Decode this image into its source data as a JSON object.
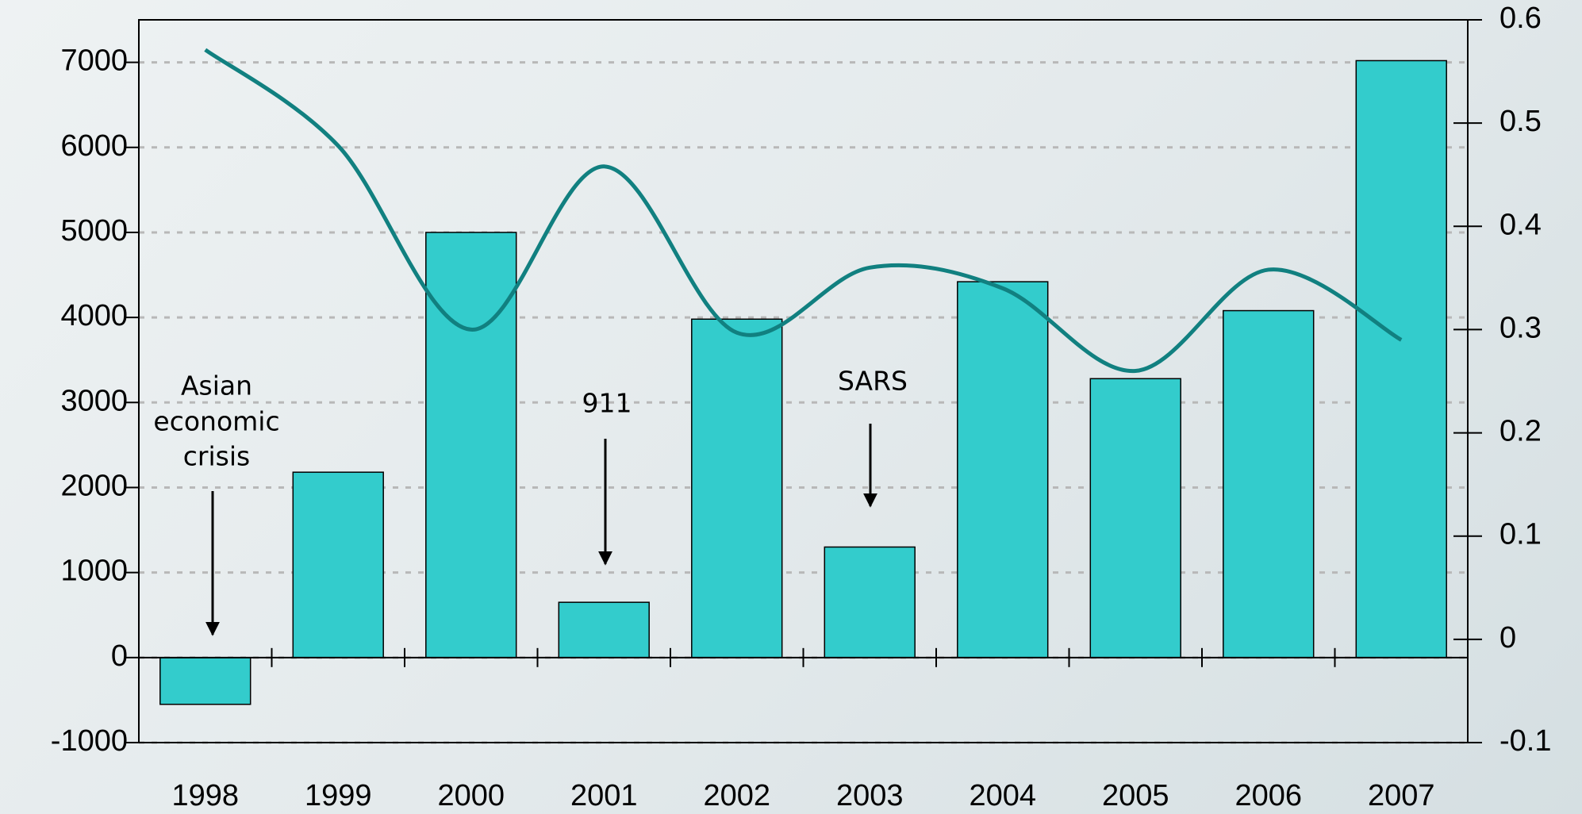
{
  "chart_data": {
    "type": "bar",
    "categories": [
      "1998",
      "1999",
      "2000",
      "2001",
      "2002",
      "2003",
      "2004",
      "2005",
      "2006",
      "2007"
    ],
    "series": [
      {
        "type": "bar",
        "color": "#33cccc",
        "values": [
          -550,
          2180,
          5000,
          650,
          3980,
          1300,
          4420,
          3280,
          4080,
          7020
        ]
      },
      {
        "type": "line",
        "axis": "y2",
        "color": "#118080",
        "values": [
          0.571,
          0.478,
          0.3,
          0.458,
          0.297,
          0.36,
          0.34,
          0.26,
          0.358,
          0.29
        ]
      }
    ],
    "ylim": [
      -1000,
      7500
    ],
    "yticks": [
      -1000,
      0,
      1000,
      2000,
      3000,
      4000,
      5000,
      6000,
      7000
    ],
    "y2lim": [
      -0.1,
      0.6
    ],
    "y2ticks": [
      -0.1,
      0,
      0.1,
      0.2,
      0.3,
      0.4,
      0.5,
      0.6
    ],
    "grid": true,
    "annotations": [
      {
        "lines": [
          "Asian",
          "economic",
          "crisis"
        ]
      },
      {
        "lines": [
          "911"
        ]
      },
      {
        "lines": [
          "SARS"
        ]
      }
    ]
  }
}
